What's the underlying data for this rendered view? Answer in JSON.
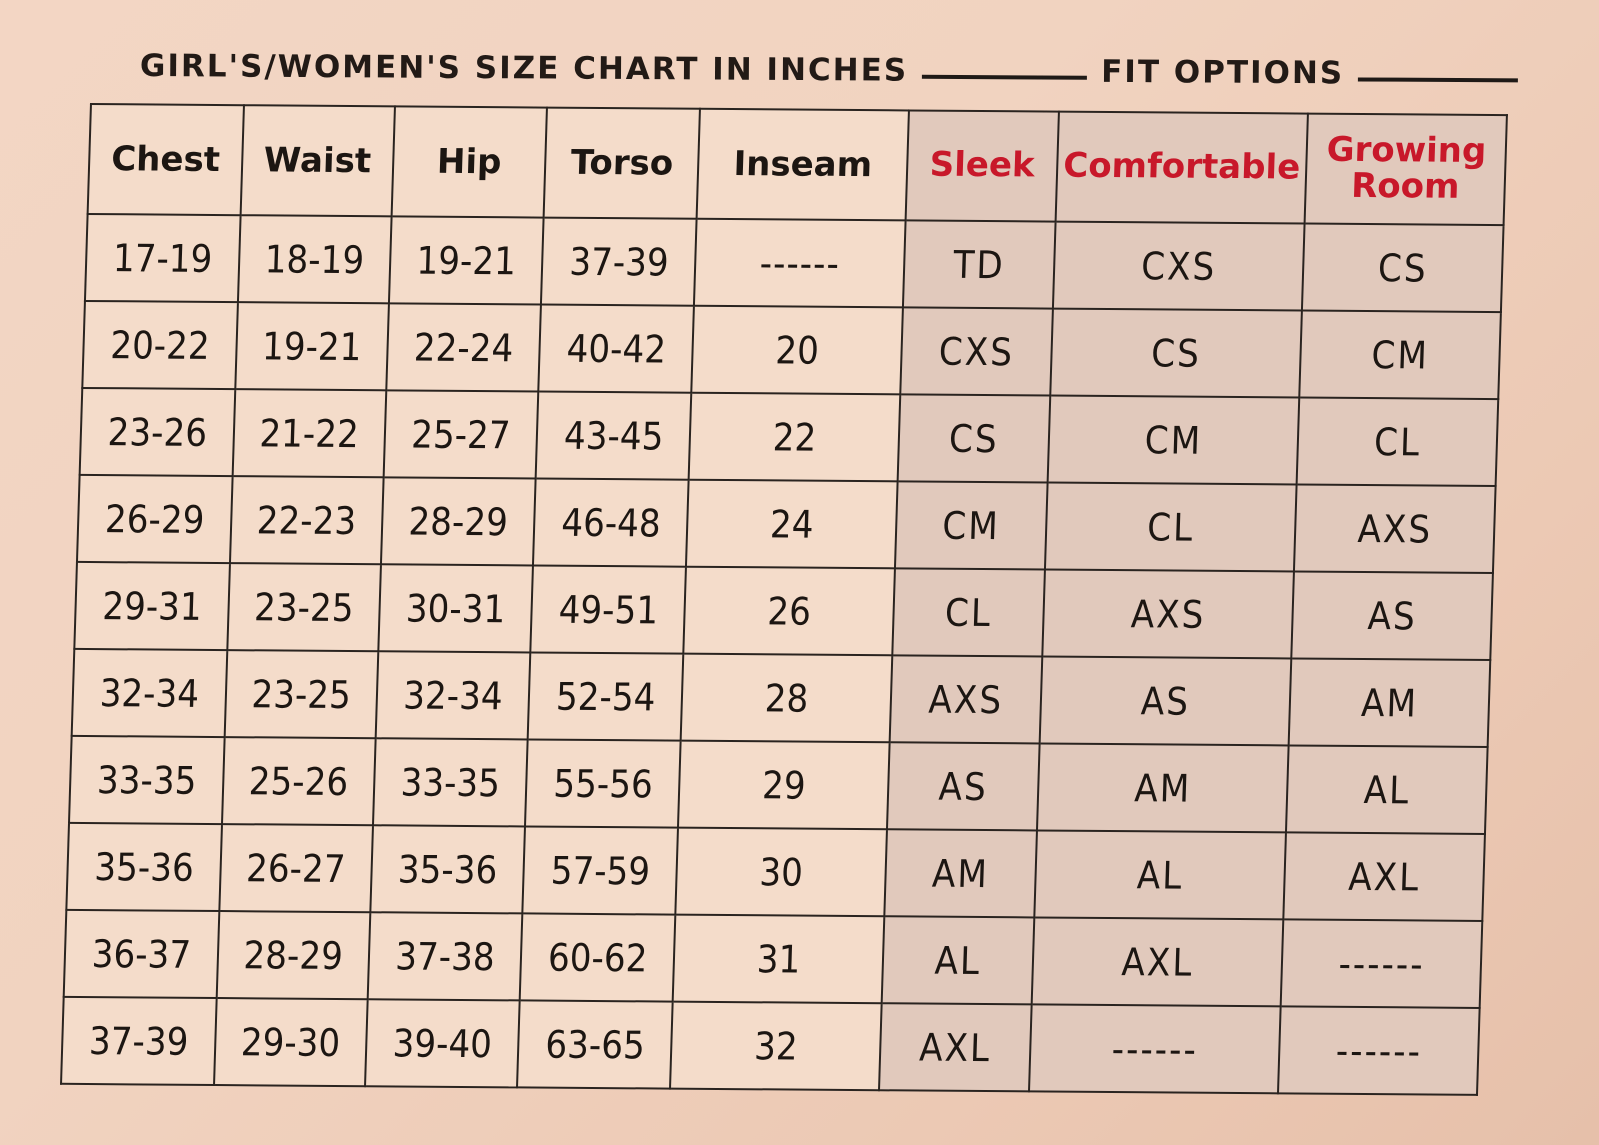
{
  "header": {
    "title": "GIRL'S/WOMEN'S SIZE CHART IN INCHES",
    "fit_title": "FIT OPTIONS"
  },
  "table": {
    "columns": [
      "Chest",
      "Waist",
      "Hip",
      "Torso",
      "Inseam",
      "Sleek",
      "Comfortable",
      "Growing Room"
    ],
    "rows": [
      [
        "17-19",
        "18-19",
        "19-21",
        "37-39",
        "------",
        "TD",
        "CXS",
        "CS"
      ],
      [
        "20-22",
        "19-21",
        "22-24",
        "40-42",
        "20",
        "CXS",
        "CS",
        "CM"
      ],
      [
        "23-26",
        "21-22",
        "25-27",
        "43-45",
        "22",
        "CS",
        "CM",
        "CL"
      ],
      [
        "26-29",
        "22-23",
        "28-29",
        "46-48",
        "24",
        "CM",
        "CL",
        "AXS"
      ],
      [
        "29-31",
        "23-25",
        "30-31",
        "49-51",
        "26",
        "CL",
        "AXS",
        "AS"
      ],
      [
        "32-34",
        "23-25",
        "32-34",
        "52-54",
        "28",
        "AXS",
        "AS",
        "AM"
      ],
      [
        "33-35",
        "25-26",
        "33-35",
        "55-56",
        "29",
        "AS",
        "AM",
        "AL"
      ],
      [
        "35-36",
        "26-27",
        "35-36",
        "57-59",
        "30",
        "AM",
        "AL",
        "AXL"
      ],
      [
        "36-37",
        "28-29",
        "37-38",
        "60-62",
        "31",
        "AL",
        "AXL",
        "------"
      ],
      [
        "37-39",
        "29-30",
        "39-40",
        "63-65",
        "32",
        "AXL",
        "------",
        "------"
      ]
    ]
  },
  "colors": {
    "fit_header_text": "#c8182a",
    "fit_column_background": "#e1c9bc",
    "paper": "#f3d6c4",
    "ink": "#1c1612"
  }
}
